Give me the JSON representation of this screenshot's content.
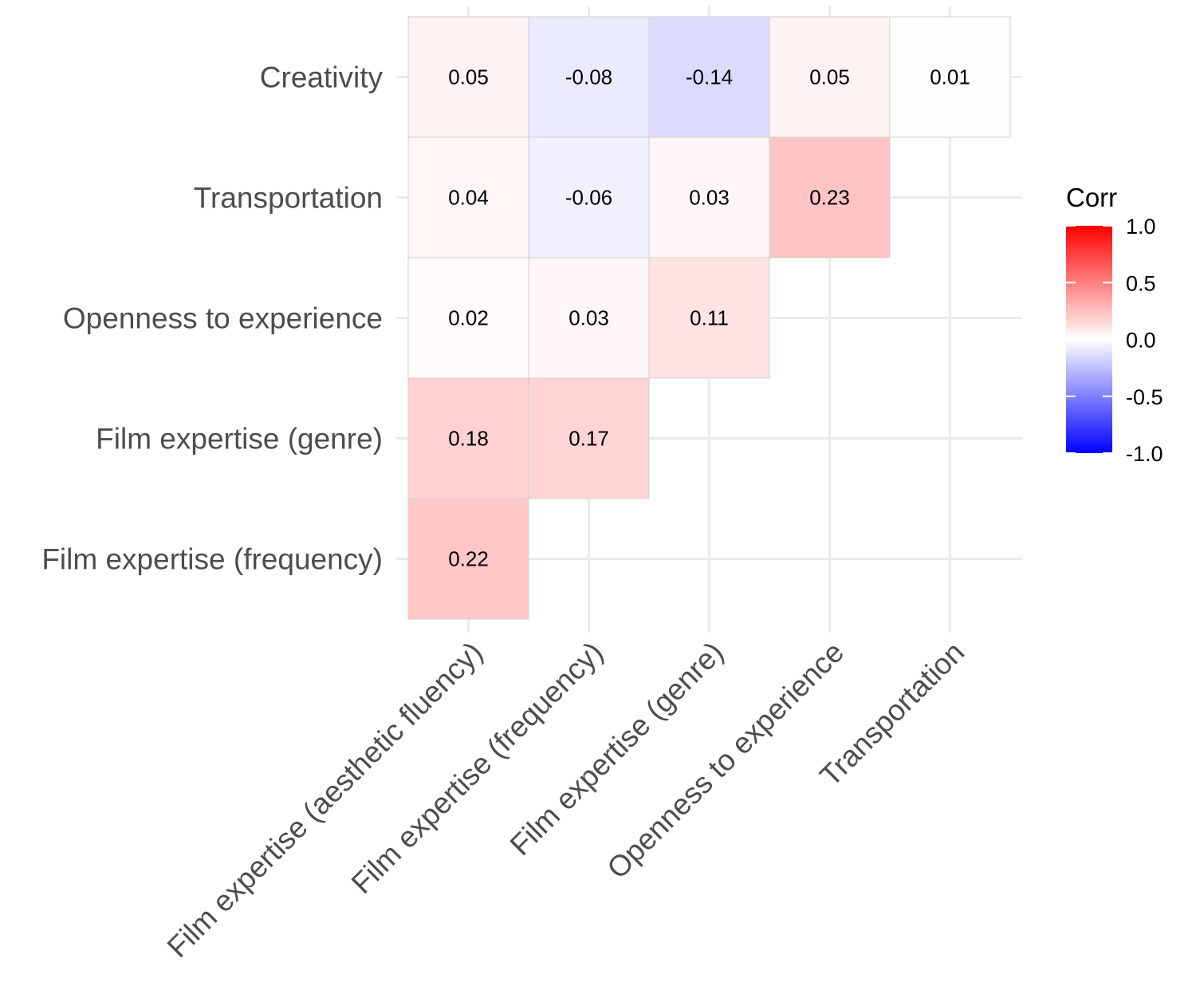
{
  "chart_data": {
    "type": "heatmap",
    "title": "",
    "x_categories": [
      "Film expertise (aesthetic fluency)",
      "Film expertise (frequency)",
      "Film expertise (genre)",
      "Openness to experience",
      "Transportation"
    ],
    "y_categories": [
      "Film expertise (frequency)",
      "Film expertise (genre)",
      "Openness to experience",
      "Transportation",
      "Creativity"
    ],
    "cells": [
      {
        "x": "Film expertise (aesthetic fluency)",
        "y": "Creativity",
        "value": 0.05,
        "label": "0.05"
      },
      {
        "x": "Film expertise (frequency)",
        "y": "Creativity",
        "value": -0.08,
        "label": "-0.08"
      },
      {
        "x": "Film expertise (genre)",
        "y": "Creativity",
        "value": -0.14,
        "label": "-0.14"
      },
      {
        "x": "Openness to experience",
        "y": "Creativity",
        "value": 0.05,
        "label": "0.05"
      },
      {
        "x": "Transportation",
        "y": "Creativity",
        "value": 0.01,
        "label": "0.01"
      },
      {
        "x": "Film expertise (aesthetic fluency)",
        "y": "Transportation",
        "value": 0.04,
        "label": "0.04"
      },
      {
        "x": "Film expertise (frequency)",
        "y": "Transportation",
        "value": -0.06,
        "label": "-0.06"
      },
      {
        "x": "Film expertise (genre)",
        "y": "Transportation",
        "value": 0.03,
        "label": "0.03"
      },
      {
        "x": "Openness to experience",
        "y": "Transportation",
        "value": 0.23,
        "label": "0.23"
      },
      {
        "x": "Film expertise (aesthetic fluency)",
        "y": "Openness to experience",
        "value": 0.02,
        "label": "0.02"
      },
      {
        "x": "Film expertise (frequency)",
        "y": "Openness to experience",
        "value": 0.03,
        "label": "0.03"
      },
      {
        "x": "Film expertise (genre)",
        "y": "Openness to experience",
        "value": 0.11,
        "label": "0.11"
      },
      {
        "x": "Film expertise (aesthetic fluency)",
        "y": "Film expertise (genre)",
        "value": 0.18,
        "label": "0.18"
      },
      {
        "x": "Film expertise (frequency)",
        "y": "Film expertise (genre)",
        "value": 0.17,
        "label": "0.17"
      },
      {
        "x": "Film expertise (aesthetic fluency)",
        "y": "Film expertise (frequency)",
        "value": 0.22,
        "label": "0.22"
      }
    ],
    "legend": {
      "title": "Corr",
      "ticks": [
        "1.0",
        "0.5",
        "0.0",
        "-0.5",
        "-1.0"
      ],
      "tick_values": [
        1.0,
        0.5,
        0.0,
        -0.5,
        -1.0
      ],
      "range": [
        -1,
        1
      ],
      "colors": {
        "low": "#0000ff",
        "mid": "#ffffff",
        "high": "#ff0000"
      },
      "placement": "right"
    },
    "grid": true,
    "xlabel": "",
    "ylabel": ""
  }
}
